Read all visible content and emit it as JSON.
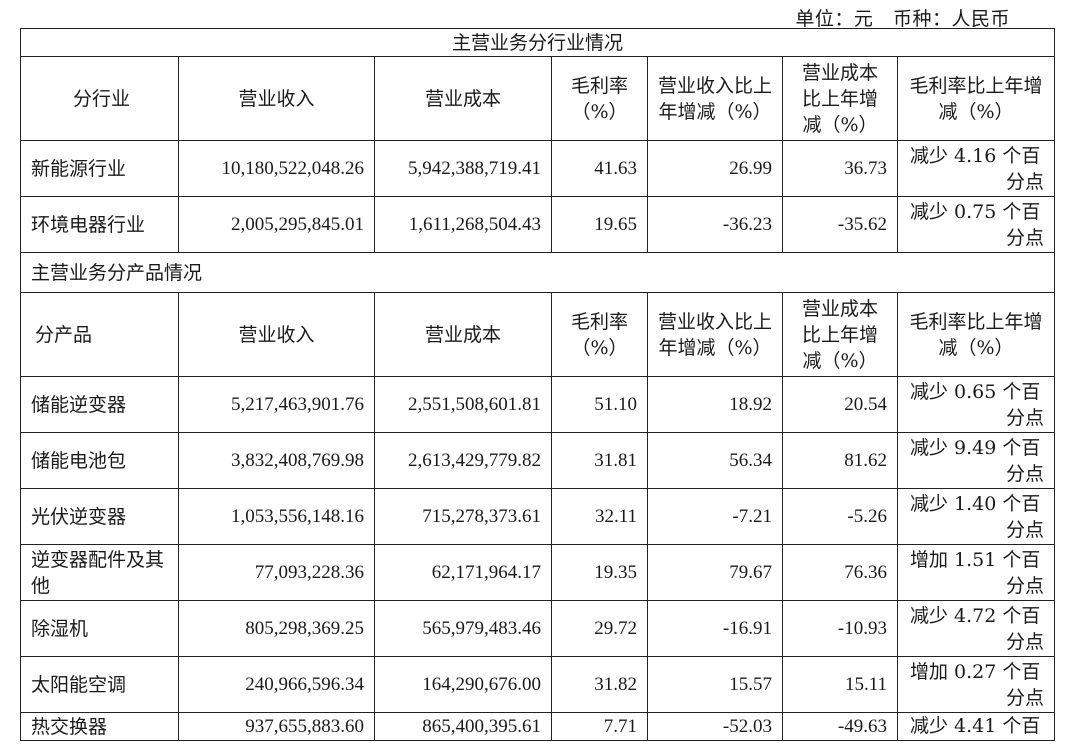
{
  "unit_line": "单位：元   币种：人民币",
  "section_industry": {
    "title": "主营业务分行业情况",
    "headers": [
      "分行业",
      "营业收入",
      "营业成本",
      "毛利率（%）",
      "营业收入比上年增减（%）",
      "营业成本比上年增减（%）",
      "毛利率比上年增减（%）"
    ],
    "rows": [
      {
        "name": "新能源行业",
        "revenue": "10,180,522,048.26",
        "cost": "5,942,388,719.41",
        "margin": "41.63",
        "rev_chg": "26.99",
        "cost_chg": "36.73",
        "margin_chg_1": "减少 4.16 个百",
        "margin_chg_2": "分点"
      },
      {
        "name": "环境电器行业",
        "revenue": "2,005,295,845.01",
        "cost": "1,611,268,504.43",
        "margin": "19.65",
        "rev_chg": "-36.23",
        "cost_chg": "-35.62",
        "margin_chg_1": "减少 0.75 个百",
        "margin_chg_2": "分点"
      }
    ]
  },
  "section_product": {
    "title": "主营业务分产品情况",
    "headers": [
      "分产品",
      "营业收入",
      "营业成本",
      "毛利率（%）",
      "营业收入比上年增减（%）",
      "营业成本比上年增减（%）",
      "毛利率比上年增减（%）"
    ],
    "rows": [
      {
        "name": "储能逆变器",
        "revenue": "5,217,463,901.76",
        "cost": "2,551,508,601.81",
        "margin": "51.10",
        "rev_chg": "18.92",
        "cost_chg": "20.54",
        "margin_chg_1": "减少 0.65 个百",
        "margin_chg_2": "分点"
      },
      {
        "name": "储能电池包",
        "revenue": "3,832,408,769.98",
        "cost": "2,613,429,779.82",
        "margin": "31.81",
        "rev_chg": "56.34",
        "cost_chg": "81.62",
        "margin_chg_1": "减少 9.49 个百",
        "margin_chg_2": "分点"
      },
      {
        "name": "光伏逆变器",
        "revenue": "1,053,556,148.16",
        "cost": "715,278,373.61",
        "margin": "32.11",
        "rev_chg": "-7.21",
        "cost_chg": "-5.26",
        "margin_chg_1": "减少 1.40 个百",
        "margin_chg_2": "分点"
      },
      {
        "name": "逆变器配件及其他",
        "revenue": "77,093,228.36",
        "cost": "62,171,964.17",
        "margin": "19.35",
        "rev_chg": "79.67",
        "cost_chg": "76.36",
        "margin_chg_1": "增加 1.51 个百",
        "margin_chg_2": "分点"
      },
      {
        "name": "除湿机",
        "revenue": "805,298,369.25",
        "cost": "565,979,483.46",
        "margin": "29.72",
        "rev_chg": "-16.91",
        "cost_chg": "-10.93",
        "margin_chg_1": "减少 4.72 个百",
        "margin_chg_2": "分点"
      },
      {
        "name": "太阳能空调",
        "revenue": "240,966,596.34",
        "cost": "164,290,676.00",
        "margin": "31.82",
        "rev_chg": "15.57",
        "cost_chg": "15.11",
        "margin_chg_1": "增加 0.27 个百",
        "margin_chg_2": "分点"
      },
      {
        "name": "热交换器",
        "revenue": "937,655,883.60",
        "cost": "865,400,395.61",
        "margin": "7.71",
        "rev_chg": "-52.03",
        "cost_chg": "-49.63",
        "margin_chg_1": "减少 4.41 个百",
        "margin_chg_2": ""
      }
    ]
  }
}
